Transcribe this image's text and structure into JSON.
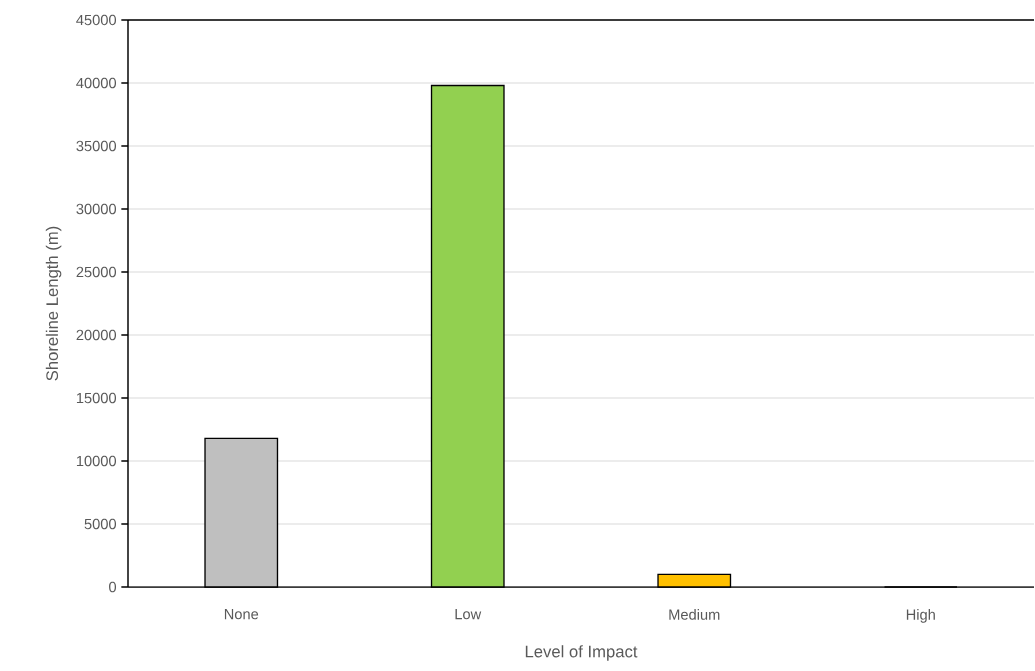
{
  "chart_data": {
    "type": "bar",
    "xlabel": "Level of Impact",
    "ylabel": "Shoreline Length (m)",
    "categories": [
      "None",
      "Low",
      "Medium",
      "High"
    ],
    "values": [
      11800,
      39800,
      1000,
      0
    ],
    "colors": [
      "#bfbfbf",
      "#92d050",
      "#ffc000",
      "#bfbfbf"
    ],
    "ylim": [
      0,
      45000
    ],
    "yticks": [
      0,
      5000,
      10000,
      15000,
      20000,
      25000,
      30000,
      35000,
      40000,
      45000
    ],
    "grid": "y"
  }
}
